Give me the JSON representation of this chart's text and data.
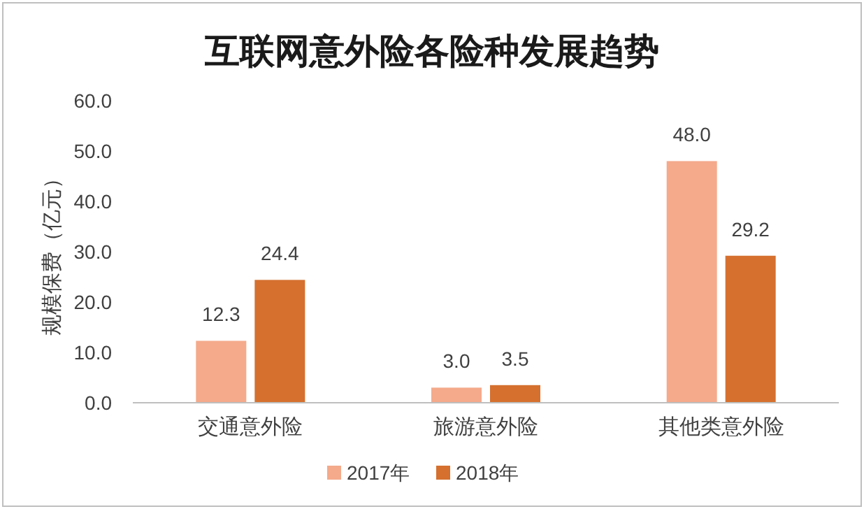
{
  "chart_data": {
    "type": "bar",
    "title": "互联网意外险各险种发展趋势",
    "ylabel": "规模保费（亿元）",
    "categories": [
      "交通意外险",
      "旅游意外险",
      "其他类意外险"
    ],
    "series": [
      {
        "name": "2017年",
        "color": "#f4aa8b",
        "values": [
          12.3,
          3.0,
          48.0
        ],
        "value_labels": [
          "12.3",
          "3.0",
          "48.0"
        ]
      },
      {
        "name": "2018年",
        "color": "#d5702f",
        "values": [
          24.4,
          3.5,
          29.2
        ],
        "value_labels": [
          "24.4",
          "3.5",
          "29.2"
        ]
      }
    ],
    "ylim": [
      0,
      60
    ],
    "yticks": [
      {
        "value": 0,
        "label": "0.0"
      },
      {
        "value": 10,
        "label": "10.0"
      },
      {
        "value": 20,
        "label": "20.0"
      },
      {
        "value": 30,
        "label": "30.0"
      },
      {
        "value": 40,
        "label": "40.0"
      },
      {
        "value": 50,
        "label": "50.0"
      },
      {
        "value": 60,
        "label": "60.0"
      }
    ],
    "grid": false,
    "legend": "bottom"
  }
}
